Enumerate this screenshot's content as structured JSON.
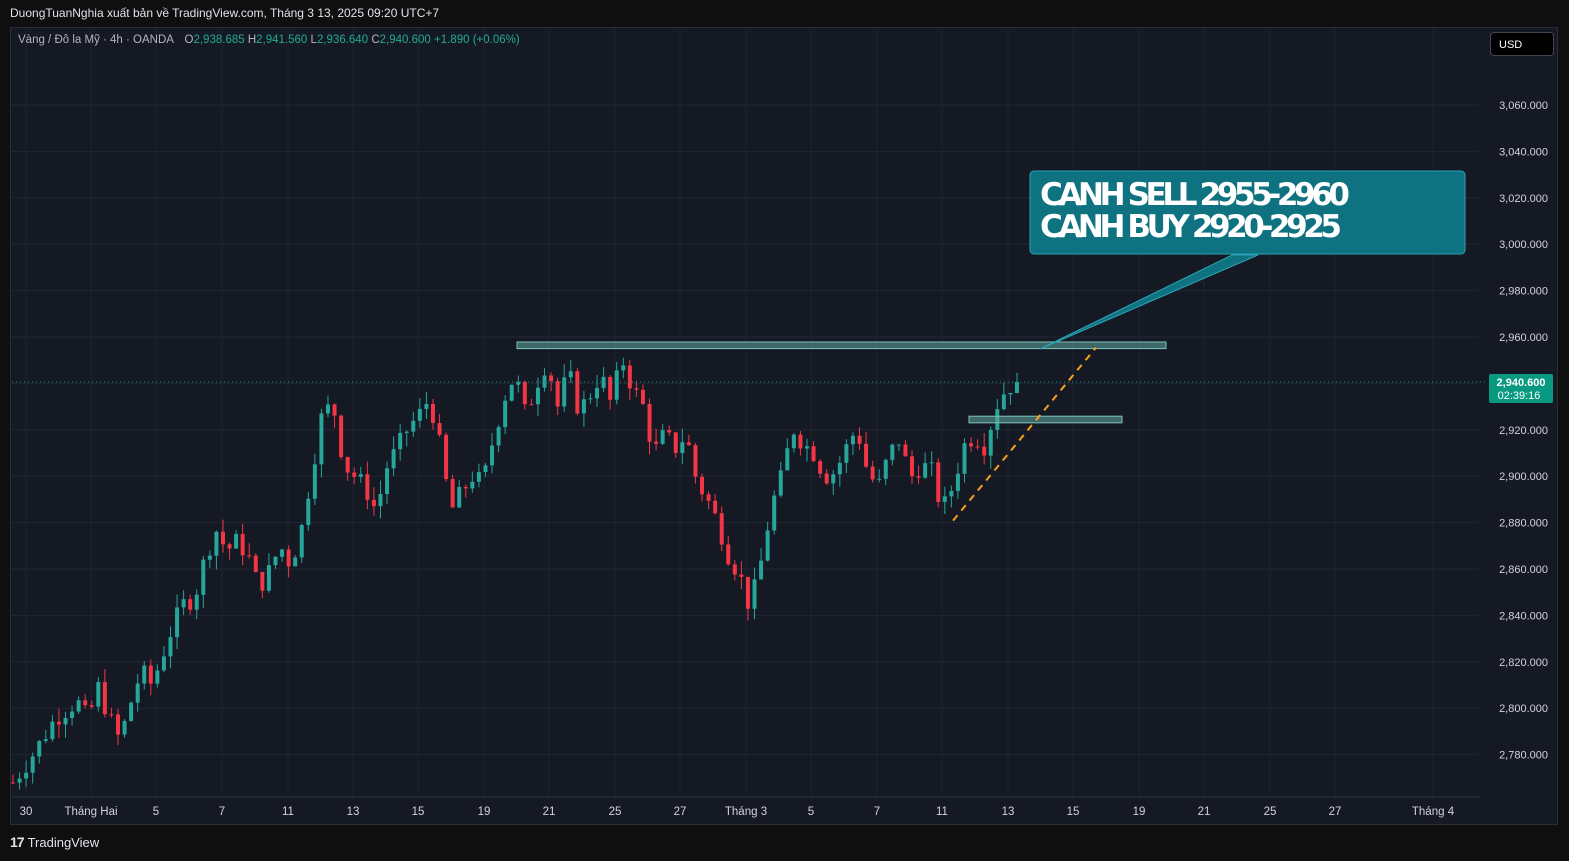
{
  "header": {
    "publisher": "DuongTuanNghia xuất bản về TradingView.com, Tháng 3 13, 2025 09:20 UTC+7"
  },
  "legend": {
    "symbol": "Vàng / Đô la Mỹ · 4h · OANDA",
    "open_label": "O",
    "open": "2,938.685",
    "high_label": "H",
    "high": "2,941.560",
    "low_label": "L",
    "low": "2,936.640",
    "close_label": "C",
    "close": "2,940.600",
    "change": "+1.890 (+0.06%)"
  },
  "currency_button": "USD",
  "footer": {
    "logo": "17",
    "brand": "TradingView"
  },
  "colors": {
    "up": "#26a69a",
    "down": "#f23645",
    "zone": "#5fa8a1",
    "callout": "#0e7281",
    "trend": "#f7a21b",
    "price_tag": "#089981"
  },
  "chart_data": {
    "type": "candlestick",
    "timeframe": "4h",
    "y_axis": {
      "ticks": [
        "3,060.000",
        "3,040.000",
        "3,020.000",
        "3,000.000",
        "2,980.000",
        "2,960.000",
        "2,940.000",
        "2,920.000",
        "2,900.000",
        "2,880.000",
        "2,860.000",
        "2,840.000",
        "2,820.000",
        "2,800.000",
        "2,780.000"
      ],
      "range": [
        2764,
        3075
      ]
    },
    "x_axis": {
      "ticks": [
        "30",
        "Tháng Hai",
        "5",
        "7",
        "11",
        "13",
        "15",
        "19",
        "21",
        "25",
        "27",
        "Tháng 3",
        "5",
        "7",
        "11",
        "13",
        "15",
        "19",
        "21",
        "25",
        "27",
        "Tháng 4"
      ]
    },
    "last_price": {
      "value": 2940.6,
      "label": "2,940.600",
      "countdown": "02:39:16"
    },
    "annotation": {
      "line1": "CANH SELL 2955-2960",
      "line2": "CANH BUY 2920-2925"
    },
    "zones": [
      {
        "name": "sell-zone",
        "from": 2955,
        "to": 2957
      },
      {
        "name": "buy-zone",
        "from": 2923,
        "to": 2925
      }
    ],
    "trendline": {
      "from": 2880,
      "to": 2955
    },
    "close_path": [
      [
        0,
        2768
      ],
      [
        2,
        2781
      ],
      [
        4,
        2796
      ],
      [
        6,
        2803
      ],
      [
        7,
        2795
      ],
      [
        8,
        2809
      ],
      [
        9,
        2796
      ],
      [
        10,
        2786
      ],
      [
        11,
        2802
      ],
      [
        12,
        2816
      ],
      [
        13,
        2810
      ],
      [
        14,
        2823
      ],
      [
        15,
        2836
      ],
      [
        16,
        2845
      ],
      [
        17,
        2848
      ],
      [
        18,
        2865
      ],
      [
        19,
        2877
      ],
      [
        20,
        2868
      ],
      [
        21,
        2872
      ],
      [
        22,
        2866
      ],
      [
        23,
        2852
      ],
      [
        24,
        2859
      ],
      [
        25,
        2870
      ],
      [
        26,
        2862
      ],
      [
        27,
        2877
      ],
      [
        28,
        2903
      ],
      [
        29,
        2928
      ],
      [
        30,
        2930
      ],
      [
        31,
        2905
      ],
      [
        32,
        2900
      ],
      [
        33,
        2895
      ],
      [
        34,
        2885
      ],
      [
        35,
        2904
      ],
      [
        36,
        2912
      ],
      [
        37,
        2921
      ],
      [
        38,
        2926
      ],
      [
        39,
        2934
      ],
      [
        40,
        2912
      ],
      [
        41,
        2885
      ],
      [
        42,
        2893
      ],
      [
        43,
        2900
      ],
      [
        44,
        2897
      ],
      [
        45,
        2917
      ],
      [
        46,
        2934
      ],
      [
        47,
        2944
      ],
      [
        48,
        2926
      ],
      [
        49,
        2940
      ],
      [
        50,
        2950
      ],
      [
        51,
        2930
      ],
      [
        52,
        2945
      ],
      [
        53,
        2928
      ],
      [
        54,
        2935
      ],
      [
        55,
        2944
      ],
      [
        56,
        2931
      ],
      [
        57,
        2951
      ],
      [
        58,
        2938
      ],
      [
        59,
        2930
      ],
      [
        60,
        2910
      ],
      [
        61,
        2918
      ],
      [
        62,
        2912
      ],
      [
        63,
        2918
      ],
      [
        64,
        2898
      ],
      [
        65,
        2890
      ],
      [
        66,
        2880
      ],
      [
        67,
        2866
      ],
      [
        68,
        2858
      ],
      [
        69,
        2843
      ],
      [
        70,
        2862
      ],
      [
        71,
        2887
      ],
      [
        72,
        2900
      ],
      [
        73,
        2921
      ],
      [
        74,
        2914
      ],
      [
        75,
        2910
      ],
      [
        76,
        2900
      ],
      [
        77,
        2902
      ],
      [
        78,
        2912
      ],
      [
        79,
        2921
      ],
      [
        80,
        2902
      ],
      [
        81,
        2895
      ],
      [
        82,
        2909
      ],
      [
        83,
        2916
      ],
      [
        84,
        2899
      ],
      [
        85,
        2905
      ],
      [
        86,
        2902
      ],
      [
        87,
        2885
      ],
      [
        88,
        2896
      ],
      [
        89,
        2913
      ],
      [
        90,
        2918
      ],
      [
        91,
        2913
      ],
      [
        92,
        2930
      ],
      [
        93,
        2938
      ],
      [
        94,
        2941
      ]
    ]
  }
}
